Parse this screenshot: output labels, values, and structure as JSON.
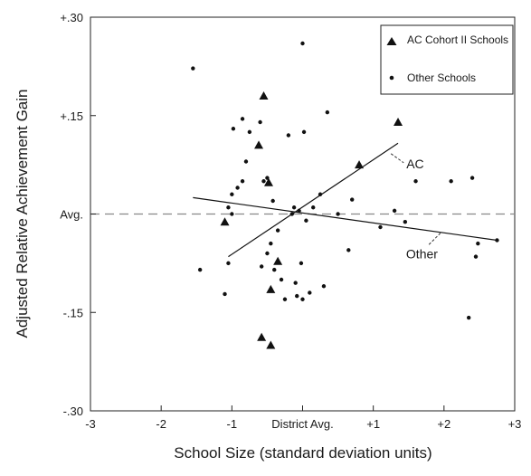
{
  "chart_data": {
    "type": "scatter",
    "xlabel": "School Size (standard deviation units)",
    "ylabel": "Adjusted Relative Achievement Gain",
    "xlim": [
      -3,
      3
    ],
    "ylim": [
      -0.3,
      0.3
    ],
    "x_ticks": [
      {
        "value": -3,
        "label": "-3"
      },
      {
        "value": -2,
        "label": "-2"
      },
      {
        "value": -1,
        "label": "-1"
      },
      {
        "value": 0,
        "label": "District Avg."
      },
      {
        "value": 1,
        "label": "+1"
      },
      {
        "value": 2,
        "label": "+2"
      },
      {
        "value": 3,
        "label": "+3"
      }
    ],
    "y_ticks": [
      {
        "value": 0.3,
        "label": "+.30"
      },
      {
        "value": 0.15,
        "label": "+.15"
      },
      {
        "value": 0,
        "label": "Avg."
      },
      {
        "value": -0.15,
        "label": "-.15"
      },
      {
        "value": -0.3,
        "label": "-.30"
      }
    ],
    "grid": false,
    "legend_position": "top-right",
    "reference_line": {
      "y": 0,
      "style": "dashed"
    },
    "series": [
      {
        "name": "AC Cohort II Schools",
        "marker": "triangle",
        "points": [
          [
            -1.1,
            -0.012
          ],
          [
            -0.55,
            0.18
          ],
          [
            -0.62,
            0.105
          ],
          [
            -0.48,
            0.048
          ],
          [
            -0.35,
            -0.072
          ],
          [
            -0.45,
            -0.115
          ],
          [
            -0.58,
            -0.188
          ],
          [
            -0.45,
            -0.2
          ],
          [
            0.8,
            0.075
          ],
          [
            1.35,
            0.14
          ]
        ]
      },
      {
        "name": "Other Schools",
        "marker": "dot",
        "points": [
          [
            -1.55,
            0.222
          ],
          [
            -1.45,
            -0.085
          ],
          [
            -1.1,
            -0.122
          ],
          [
            -1.05,
            -0.075
          ],
          [
            -1.05,
            0.01
          ],
          [
            -1.0,
            0.0
          ],
          [
            -1.0,
            0.03
          ],
          [
            -0.98,
            0.13
          ],
          [
            -0.92,
            0.04
          ],
          [
            -0.85,
            0.145
          ],
          [
            -0.85,
            0.05
          ],
          [
            -0.8,
            0.08
          ],
          [
            -0.75,
            0.125
          ],
          [
            -0.6,
            0.14
          ],
          [
            -0.58,
            -0.08
          ],
          [
            -0.55,
            0.05
          ],
          [
            -0.5,
            0.055
          ],
          [
            -0.5,
            -0.06
          ],
          [
            -0.45,
            -0.045
          ],
          [
            -0.42,
            0.02
          ],
          [
            -0.4,
            -0.085
          ],
          [
            -0.35,
            -0.025
          ],
          [
            -0.3,
            -0.1
          ],
          [
            -0.25,
            -0.13
          ],
          [
            -0.2,
            0.12
          ],
          [
            -0.15,
            0.0
          ],
          [
            -0.12,
            0.01
          ],
          [
            -0.1,
            -0.105
          ],
          [
            -0.08,
            -0.125
          ],
          [
            -0.05,
            0.005
          ],
          [
            -0.02,
            -0.075
          ],
          [
            0.0,
            0.26
          ],
          [
            0.0,
            -0.13
          ],
          [
            0.02,
            0.125
          ],
          [
            0.05,
            -0.01
          ],
          [
            0.1,
            -0.12
          ],
          [
            0.15,
            0.01
          ],
          [
            0.25,
            0.03
          ],
          [
            0.3,
            -0.11
          ],
          [
            0.35,
            0.155
          ],
          [
            0.5,
            0.0
          ],
          [
            0.65,
            -0.055
          ],
          [
            0.7,
            0.022
          ],
          [
            1.1,
            -0.02
          ],
          [
            1.3,
            0.005
          ],
          [
            1.45,
            -0.012
          ],
          [
            1.6,
            0.05
          ],
          [
            2.1,
            0.05
          ],
          [
            2.35,
            -0.158
          ],
          [
            2.4,
            0.055
          ],
          [
            2.45,
            -0.065
          ],
          [
            2.48,
            -0.045
          ],
          [
            2.75,
            -0.04
          ]
        ]
      }
    ],
    "fit_lines": [
      {
        "name": "AC",
        "from": [
          -1.05,
          -0.065
        ],
        "to": [
          1.35,
          0.108
        ]
      },
      {
        "name": "Other",
        "from": [
          -1.55,
          0.025
        ],
        "to": [
          2.75,
          -0.04
        ]
      }
    ]
  }
}
